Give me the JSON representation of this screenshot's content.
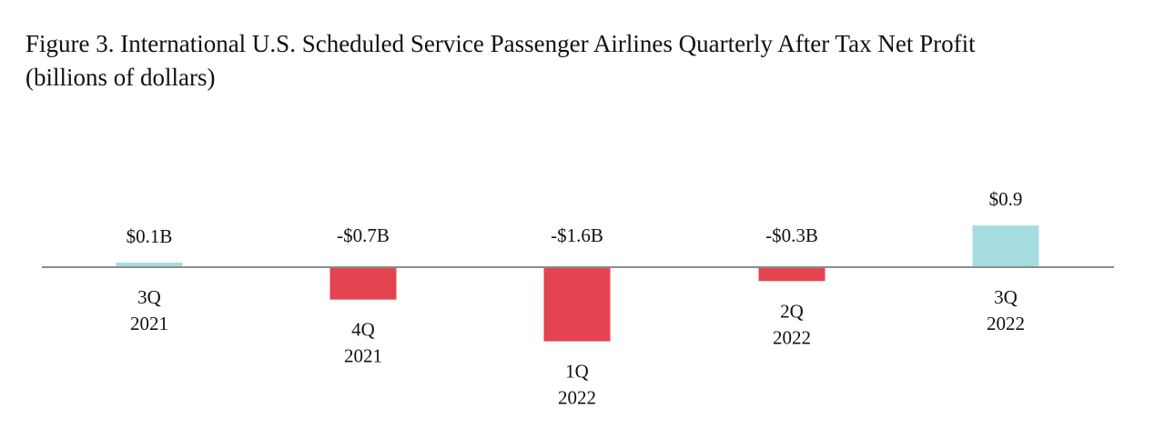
{
  "title": "Figure 3. International U.S. Scheduled Service Passenger Airlines Quarterly After Tax Net Profit",
  "subtitle": "(billions of dollars)",
  "chart_data": {
    "type": "bar",
    "categories": [
      [
        "3Q",
        "2021"
      ],
      [
        "4Q",
        "2021"
      ],
      [
        "1Q",
        "2022"
      ],
      [
        "2Q",
        "2022"
      ],
      [
        "3Q",
        "2022"
      ]
    ],
    "values": [
      0.1,
      -0.7,
      -1.6,
      -0.3,
      0.9
    ],
    "data_labels": [
      "$0.1B",
      "-$0.7B",
      "-$1.6B",
      "-$0.3B",
      "$0.9"
    ],
    "unit": "billions of dollars",
    "colors": {
      "positive": "#a6dde0",
      "negative": "#e4444f",
      "axis": "#8c8c8c"
    },
    "grid": false,
    "legend": "none"
  }
}
